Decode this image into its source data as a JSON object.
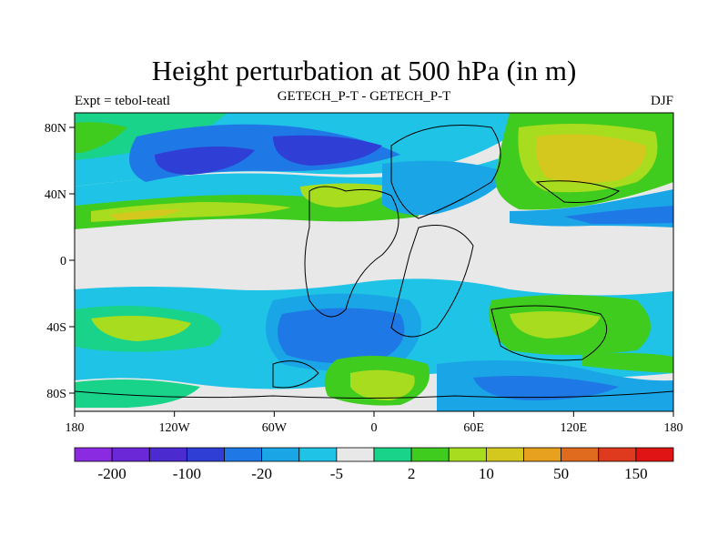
{
  "title": "Height perturbation at 500 hPa (in m)",
  "subtitle_left": "Expt = tebol-teatl",
  "subtitle_center": "GETECH_P-T - GETECH_P-T",
  "subtitle_right": "DJF",
  "map": {
    "lon_range": [
      -180,
      180
    ],
    "lat_range": [
      -90,
      90
    ],
    "x_ticks": [
      "180",
      "120W",
      "60W",
      "0",
      "60E",
      "120E",
      "180"
    ],
    "y_ticks": [
      "80N",
      "40N",
      "0",
      "40S",
      "80S"
    ]
  },
  "colorbar": {
    "colors": [
      "#8a2be2",
      "#6a28d6",
      "#4b2ad0",
      "#2f3fd6",
      "#1e78e6",
      "#1aa6e6",
      "#1ec3e6",
      "#e8e8e8",
      "#19d38a",
      "#3fcc1e",
      "#a8dc1e",
      "#d4c81e",
      "#e8a11e",
      "#e06a1e",
      "#e03a1e",
      "#e01414"
    ],
    "labels": [
      "-200",
      "-100",
      "-20",
      "-5",
      "2",
      "10",
      "50",
      "150"
    ]
  },
  "colors": {
    "land_outline": "#000000",
    "neutral": "#e8e8e8"
  }
}
